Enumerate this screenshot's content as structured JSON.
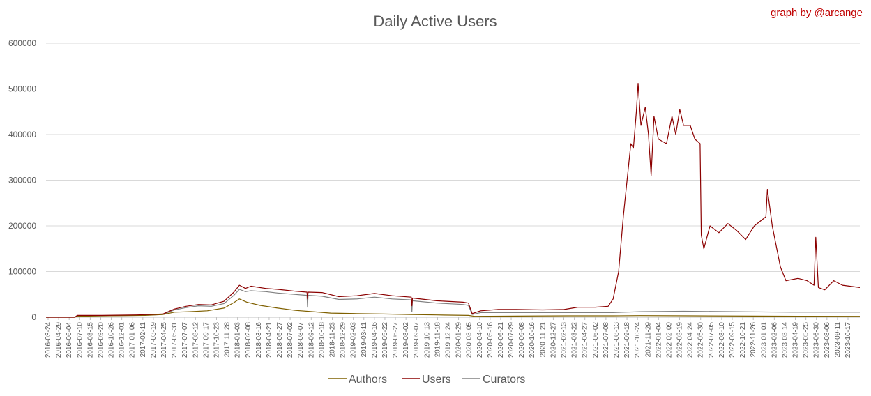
{
  "chart_data": {
    "type": "line",
    "title": "Daily Active Users",
    "credit": "graph by @arcange",
    "xlabel": "",
    "ylabel": "",
    "ylim": [
      0,
      600000
    ],
    "yticks": [
      "0",
      "100000",
      "200000",
      "300000",
      "400000",
      "500000",
      "600000"
    ],
    "grid": true,
    "legend_position": "bottom",
    "x_start": "2016-03-24",
    "x_tick_interval_days": 36,
    "x_tick_labels": [
      "2016-03-24",
      "2016-04-29",
      "2016-06-04",
      "2016-07-10",
      "2016-08-15",
      "2016-09-20",
      "2016-10-26",
      "2016-12-01",
      "2017-01-06",
      "2017-02-11",
      "2017-03-19",
      "2017-04-25",
      "2017-05-31",
      "2017-07-07",
      "2017-08-12",
      "2017-09-17",
      "2017-10-23",
      "2017-11-28",
      "2018-01-03",
      "2018-02-08",
      "2018-03-16",
      "2018-04-21",
      "2018-05-27",
      "2018-07-02",
      "2018-08-07",
      "2018-09-12",
      "2018-10-18",
      "2018-11-23",
      "2018-12-29",
      "2019-02-03",
      "2019-03-11",
      "2019-04-16",
      "2019-05-22",
      "2019-06-27",
      "2019-08-02",
      "2019-09-07",
      "2019-10-13",
      "2019-11-18",
      "2019-12-24",
      "2020-01-29",
      "2020-03-05",
      "2020-04-10",
      "2020-05-16",
      "2020-06-21",
      "2020-07-29",
      "2020-09-08",
      "2020-10-16",
      "2020-11-21",
      "2020-12-27",
      "2021-02-13",
      "2021-03-22",
      "2021-04-27",
      "2021-06-02",
      "2021-07-08",
      "2021-08-13",
      "2021-09-18",
      "2021-10-24",
      "2021-11-29",
      "2022-01-04",
      "2022-02-09",
      "2022-03-19",
      "2022-04-24",
      "2022-05-30",
      "2022-07-05",
      "2022-08-10",
      "2022-09-15",
      "2022-10-21",
      "2022-11-26",
      "2023-01-01",
      "2023-02-06",
      "2023-03-14",
      "2023-04-19",
      "2023-05-25",
      "2023-06-30",
      "2023-08-06",
      "2023-09-11",
      "2023-10-17"
    ],
    "x_end": "2023-11-30",
    "series": [
      {
        "name": "Authors",
        "color": "#7f6000",
        "points": [
          [
            "2016-03-24",
            0
          ],
          [
            "2016-07-01",
            0
          ],
          [
            "2016-07-10",
            2000
          ],
          [
            "2016-10-01",
            3000
          ],
          [
            "2017-03-01",
            4000
          ],
          [
            "2017-05-01",
            6000
          ],
          [
            "2017-06-10",
            11000
          ],
          [
            "2017-08-01",
            12000
          ],
          [
            "2017-10-01",
            14000
          ],
          [
            "2017-11-28",
            20000
          ],
          [
            "2018-01-01",
            32000
          ],
          [
            "2018-01-20",
            40000
          ],
          [
            "2018-02-15",
            33000
          ],
          [
            "2018-04-01",
            26000
          ],
          [
            "2018-06-01",
            20000
          ],
          [
            "2018-08-01",
            15000
          ],
          [
            "2018-10-01",
            12000
          ],
          [
            "2018-12-01",
            9000
          ],
          [
            "2019-03-01",
            8000
          ],
          [
            "2019-06-01",
            7000
          ],
          [
            "2019-09-01",
            6000
          ],
          [
            "2019-12-01",
            5000
          ],
          [
            "2020-03-20",
            4000
          ],
          [
            "2020-04-10",
            2000
          ],
          [
            "2020-09-01",
            2500
          ],
          [
            "2021-03-01",
            3000
          ],
          [
            "2021-08-01",
            3000
          ],
          [
            "2021-11-01",
            3500
          ],
          [
            "2022-05-01",
            3000
          ],
          [
            "2022-12-01",
            2500
          ],
          [
            "2023-06-01",
            2200
          ],
          [
            "2023-11-30",
            2000
          ]
        ]
      },
      {
        "name": "Users",
        "color": "#8b0000",
        "points": [
          [
            "2016-03-24",
            0
          ],
          [
            "2016-07-01",
            0
          ],
          [
            "2016-07-10",
            4000
          ],
          [
            "2016-10-01",
            4000
          ],
          [
            "2017-02-01",
            5000
          ],
          [
            "2017-05-01",
            7000
          ],
          [
            "2017-06-10",
            18000
          ],
          [
            "2017-07-20",
            24000
          ],
          [
            "2017-09-01",
            28000
          ],
          [
            "2017-10-15",
            27000
          ],
          [
            "2017-11-28",
            35000
          ],
          [
            "2018-01-01",
            55000
          ],
          [
            "2018-01-20",
            70000
          ],
          [
            "2018-02-10",
            63000
          ],
          [
            "2018-03-01",
            68000
          ],
          [
            "2018-04-21",
            63000
          ],
          [
            "2018-06-01",
            61000
          ],
          [
            "2018-08-01",
            57000
          ],
          [
            "2018-09-10",
            55000
          ],
          [
            "2018-09-12",
            40000
          ],
          [
            "2018-09-14",
            55000
          ],
          [
            "2018-11-01",
            54000
          ],
          [
            "2018-12-29",
            45000
          ],
          [
            "2019-03-01",
            47000
          ],
          [
            "2019-05-01",
            52000
          ],
          [
            "2019-07-01",
            47000
          ],
          [
            "2019-09-05",
            44000
          ],
          [
            "2019-09-07",
            25000
          ],
          [
            "2019-09-09",
            42000
          ],
          [
            "2019-12-01",
            36000
          ],
          [
            "2020-03-01",
            33000
          ],
          [
            "2020-03-20",
            31000
          ],
          [
            "2020-04-02",
            8000
          ],
          [
            "2020-05-01",
            14000
          ],
          [
            "2020-07-01",
            17000
          ],
          [
            "2020-09-01",
            17000
          ],
          [
            "2020-12-01",
            16000
          ],
          [
            "2021-02-13",
            17000
          ],
          [
            "2021-04-01",
            22000
          ],
          [
            "2021-06-01",
            22000
          ],
          [
            "2021-07-15",
            24000
          ],
          [
            "2021-08-01",
            40000
          ],
          [
            "2021-08-20",
            100000
          ],
          [
            "2021-09-05",
            220000
          ],
          [
            "2021-09-18",
            300000
          ],
          [
            "2021-10-01",
            380000
          ],
          [
            "2021-10-10",
            370000
          ],
          [
            "2021-10-20",
            450000
          ],
          [
            "2021-10-26",
            512000
          ],
          [
            "2021-11-05",
            420000
          ],
          [
            "2021-11-20",
            460000
          ],
          [
            "2021-12-01",
            400000
          ],
          [
            "2021-12-10",
            310000
          ],
          [
            "2021-12-20",
            440000
          ],
          [
            "2022-01-04",
            390000
          ],
          [
            "2022-02-01",
            380000
          ],
          [
            "2022-02-20",
            440000
          ],
          [
            "2022-03-05",
            400000
          ],
          [
            "2022-03-19",
            455000
          ],
          [
            "2022-04-01",
            420000
          ],
          [
            "2022-04-24",
            420000
          ],
          [
            "2022-05-10",
            390000
          ],
          [
            "2022-05-28",
            380000
          ],
          [
            "2022-06-01",
            180000
          ],
          [
            "2022-06-10",
            150000
          ],
          [
            "2022-07-01",
            200000
          ],
          [
            "2022-08-01",
            185000
          ],
          [
            "2022-09-01",
            205000
          ],
          [
            "2022-10-01",
            190000
          ],
          [
            "2022-11-01",
            170000
          ],
          [
            "2022-12-01",
            200000
          ],
          [
            "2023-01-10",
            220000
          ],
          [
            "2023-01-15",
            280000
          ],
          [
            "2023-02-01",
            200000
          ],
          [
            "2023-03-01",
            110000
          ],
          [
            "2023-03-20",
            80000
          ],
          [
            "2023-05-01",
            85000
          ],
          [
            "2023-06-01",
            80000
          ],
          [
            "2023-06-25",
            70000
          ],
          [
            "2023-07-01",
            175000
          ],
          [
            "2023-07-10",
            65000
          ],
          [
            "2023-08-01",
            60000
          ],
          [
            "2023-09-01",
            80000
          ],
          [
            "2023-10-01",
            70000
          ],
          [
            "2023-11-30",
            65000
          ]
        ]
      },
      {
        "name": "Curators",
        "color": "#808080",
        "points": [
          [
            "2016-03-24",
            0
          ],
          [
            "2016-07-01",
            0
          ],
          [
            "2016-07-10",
            3000
          ],
          [
            "2016-10-01",
            3000
          ],
          [
            "2017-02-01",
            4000
          ],
          [
            "2017-05-01",
            6000
          ],
          [
            "2017-06-10",
            16000
          ],
          [
            "2017-07-20",
            21000
          ],
          [
            "2017-09-01",
            25000
          ],
          [
            "2017-10-15",
            24000
          ],
          [
            "2017-11-28",
            30000
          ],
          [
            "2018-01-01",
            48000
          ],
          [
            "2018-01-20",
            61000
          ],
          [
            "2018-02-10",
            56000
          ],
          [
            "2018-03-01",
            58000
          ],
          [
            "2018-04-21",
            56000
          ],
          [
            "2018-06-01",
            53000
          ],
          [
            "2018-08-01",
            50000
          ],
          [
            "2018-09-10",
            48000
          ],
          [
            "2018-09-12",
            22000
          ],
          [
            "2018-09-14",
            48000
          ],
          [
            "2018-11-01",
            46000
          ],
          [
            "2018-12-29",
            39000
          ],
          [
            "2019-03-01",
            40000
          ],
          [
            "2019-05-01",
            44000
          ],
          [
            "2019-07-01",
            40000
          ],
          [
            "2019-09-05",
            38000
          ],
          [
            "2019-09-07",
            12000
          ],
          [
            "2019-09-09",
            36000
          ],
          [
            "2019-12-01",
            31000
          ],
          [
            "2020-03-01",
            28000
          ],
          [
            "2020-03-20",
            26000
          ],
          [
            "2020-04-02",
            6000
          ],
          [
            "2020-05-01",
            10000
          ],
          [
            "2020-09-01",
            10000
          ],
          [
            "2021-02-13",
            10000
          ],
          [
            "2021-08-01",
            10000
          ],
          [
            "2021-11-01",
            12000
          ],
          [
            "2022-04-01",
            13000
          ],
          [
            "2022-10-01",
            12000
          ],
          [
            "2023-04-01",
            11000
          ],
          [
            "2023-11-30",
            11000
          ]
        ]
      }
    ]
  }
}
